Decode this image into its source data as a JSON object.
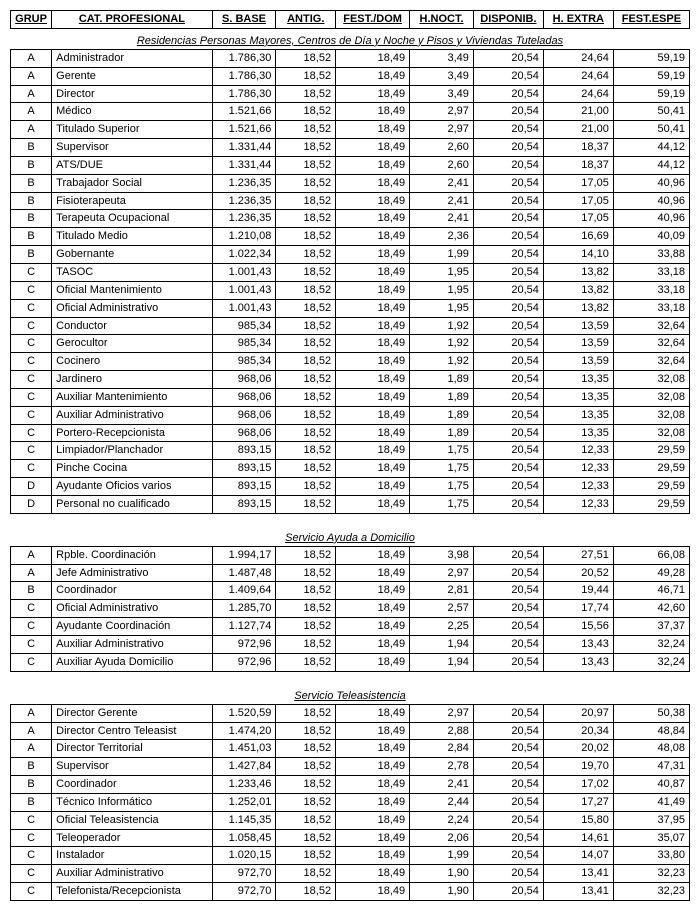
{
  "columns": [
    "GRUP",
    "CAT. PROFESIONAL",
    "S. BASE",
    "ANTIG.",
    "FEST./DOM",
    "H.NOCT.",
    "DISPONIB.",
    "H. EXTRA",
    "FEST.ESPE"
  ],
  "sections": [
    {
      "title": "Residencias Personas Mayores, Centros de Día y Noche y Pisos y Viviendas Tuteladas",
      "rows": [
        [
          "A",
          "Administrador",
          "1.786,30",
          "18,52",
          "18,49",
          "3,49",
          "20,54",
          "24,64",
          "59,19"
        ],
        [
          "A",
          "Gerente",
          "1.786,30",
          "18,52",
          "18,49",
          "3,49",
          "20,54",
          "24,64",
          "59,19"
        ],
        [
          "A",
          "Director",
          "1.786,30",
          "18,52",
          "18,49",
          "3,49",
          "20,54",
          "24,64",
          "59,19"
        ],
        [
          "A",
          "Médico",
          "1.521,66",
          "18,52",
          "18,49",
          "2,97",
          "20,54",
          "21,00",
          "50,41"
        ],
        [
          "A",
          "Titulado Superior",
          "1.521,66",
          "18,52",
          "18,49",
          "2,97",
          "20,54",
          "21,00",
          "50,41"
        ],
        [
          "B",
          "Supervisor",
          "1.331,44",
          "18,52",
          "18,49",
          "2,60",
          "20,54",
          "18,37",
          "44,12"
        ],
        [
          "B",
          "ATS/DUE",
          "1.331,44",
          "18,52",
          "18,49",
          "2,60",
          "20,54",
          "18,37",
          "44,12"
        ],
        [
          "B",
          "Trabajador Social",
          "1.236,35",
          "18,52",
          "18,49",
          "2,41",
          "20,54",
          "17,05",
          "40,96"
        ],
        [
          "B",
          "Fisioterapeuta",
          "1.236,35",
          "18,52",
          "18,49",
          "2,41",
          "20,54",
          "17,05",
          "40,96"
        ],
        [
          "B",
          "Terapeuta Ocupacional",
          "1.236,35",
          "18,52",
          "18,49",
          "2,41",
          "20,54",
          "17,05",
          "40,96"
        ],
        [
          "B",
          "Titulado Medio",
          "1.210,08",
          "18,52",
          "18,49",
          "2,36",
          "20,54",
          "16,69",
          "40,09"
        ],
        [
          "B",
          "Gobernante",
          "1.022,34",
          "18,52",
          "18,49",
          "1,99",
          "20,54",
          "14,10",
          "33,88"
        ],
        [
          "C",
          "TASOC",
          "1.001,43",
          "18,52",
          "18,49",
          "1,95",
          "20,54",
          "13,82",
          "33,18"
        ],
        [
          "C",
          "Oficial Mantenimiento",
          "1.001,43",
          "18,52",
          "18,49",
          "1,95",
          "20,54",
          "13,82",
          "33,18"
        ],
        [
          "C",
          "Oficial Administrativo",
          "1.001,43",
          "18,52",
          "18,49",
          "1,95",
          "20,54",
          "13,82",
          "33,18"
        ],
        [
          "C",
          "Conductor",
          "985,34",
          "18,52",
          "18,49",
          "1,92",
          "20,54",
          "13,59",
          "32,64"
        ],
        [
          "C",
          "Gerocultor",
          "985,34",
          "18,52",
          "18,49",
          "1,92",
          "20,54",
          "13,59",
          "32,64"
        ],
        [
          "C",
          "Cocinero",
          "985,34",
          "18,52",
          "18,49",
          "1,92",
          "20,54",
          "13,59",
          "32,64"
        ],
        [
          "C",
          "Jardinero",
          "968,06",
          "18,52",
          "18,49",
          "1,89",
          "20,54",
          "13,35",
          "32,08"
        ],
        [
          "C",
          "Auxiliar Mantenimiento",
          "968,06",
          "18,52",
          "18,49",
          "1,89",
          "20,54",
          "13,35",
          "32,08"
        ],
        [
          "C",
          "Auxiliar Administrativo",
          "968,06",
          "18,52",
          "18,49",
          "1,89",
          "20,54",
          "13,35",
          "32,08"
        ],
        [
          "C",
          "Portero-Recepcionista",
          "968,06",
          "18,52",
          "18,49",
          "1,89",
          "20,54",
          "13,35",
          "32,08"
        ],
        [
          "C",
          "Limpiador/Planchador",
          "893,15",
          "18,52",
          "18,49",
          "1,75",
          "20,54",
          "12,33",
          "29,59"
        ],
        [
          "C",
          "Pinche Cocina",
          "893,15",
          "18,52",
          "18,49",
          "1,75",
          "20,54",
          "12,33",
          "29,59"
        ],
        [
          "D",
          "Ayudante Oficios varios",
          "893,15",
          "18,52",
          "18,49",
          "1,75",
          "20,54",
          "12,33",
          "29,59"
        ],
        [
          "D",
          "Personal no cualificado",
          "893,15",
          "18,52",
          "18,49",
          "1,75",
          "20,54",
          "12,33",
          "29,59"
        ]
      ]
    },
    {
      "title": "Servicio Ayuda a Domicilio",
      "rows": [
        [
          "A",
          "Rpble. Coordinación",
          "1.994,17",
          "18,52",
          "18,49",
          "3,98",
          "20,54",
          "27,51",
          "66,08"
        ],
        [
          "A",
          "Jefe Administrativo",
          "1.487,48",
          "18,52",
          "18,49",
          "2,97",
          "20,54",
          "20,52",
          "49,28"
        ],
        [
          "B",
          "Coordinador",
          "1.409,64",
          "18,52",
          "18,49",
          "2,81",
          "20,54",
          "19,44",
          "46,71"
        ],
        [
          "C",
          "Oficial Administrativo",
          "1.285,70",
          "18,52",
          "18,49",
          "2,57",
          "20,54",
          "17,74",
          "42,60"
        ],
        [
          "C",
          "Ayudante Coordinación",
          "1.127,74",
          "18,52",
          "18,49",
          "2,25",
          "20,54",
          "15,56",
          "37,37"
        ],
        [
          "C",
          "Auxiliar Administrativo",
          "972,96",
          "18,52",
          "18,49",
          "1,94",
          "20,54",
          "13,43",
          "32,24"
        ],
        [
          "C",
          "Auxiliar Ayuda Domicilio",
          "972,96",
          "18,52",
          "18,49",
          "1,94",
          "20,54",
          "13,43",
          "32,24"
        ]
      ]
    },
    {
      "title": "Servicio Teleasistencia",
      "rows": [
        [
          "A",
          "Director Gerente",
          "1.520,59",
          "18,52",
          "18,49",
          "2,97",
          "20,54",
          "20,97",
          "50,38"
        ],
        [
          "A",
          "Director Centro Teleasist",
          "1.474,20",
          "18,52",
          "18,49",
          "2,88",
          "20,54",
          "20,34",
          "48,84"
        ],
        [
          "A",
          "Director Territorial",
          "1.451,03",
          "18,52",
          "18,49",
          "2,84",
          "20,54",
          "20,02",
          "48,08"
        ],
        [
          "B",
          "Supervisor",
          "1.427,84",
          "18,52",
          "18,49",
          "2,78",
          "20,54",
          "19,70",
          "47,31"
        ],
        [
          "B",
          "Coordinador",
          "1.233,46",
          "18,52",
          "18,49",
          "2,41",
          "20,54",
          "17,02",
          "40,87"
        ],
        [
          "B",
          "Técnico Informático",
          "1.252,01",
          "18,52",
          "18,49",
          "2,44",
          "20,54",
          "17,27",
          "41,49"
        ],
        [
          "C",
          "Oficial Teleasistencia",
          "1.145,35",
          "18,52",
          "18,49",
          "2,24",
          "20,54",
          "15,80",
          "37,95"
        ],
        [
          "C",
          "Teleoperador",
          "1.058,45",
          "18,52",
          "18,49",
          "2,06",
          "20,54",
          "14,61",
          "35,07"
        ],
        [
          "C",
          "Instalador",
          "1.020,15",
          "18,52",
          "18,49",
          "1,99",
          "20,54",
          "14,07",
          "33,80"
        ],
        [
          "C",
          "Auxiliar Administrativo",
          "972,70",
          "18,52",
          "18,49",
          "1,90",
          "20,54",
          "13,41",
          "32,23"
        ],
        [
          "C",
          "Telefonista/Recepcionista",
          "972,70",
          "18,52",
          "18,49",
          "1,90",
          "20,54",
          "13,41",
          "32,23"
        ]
      ]
    }
  ]
}
